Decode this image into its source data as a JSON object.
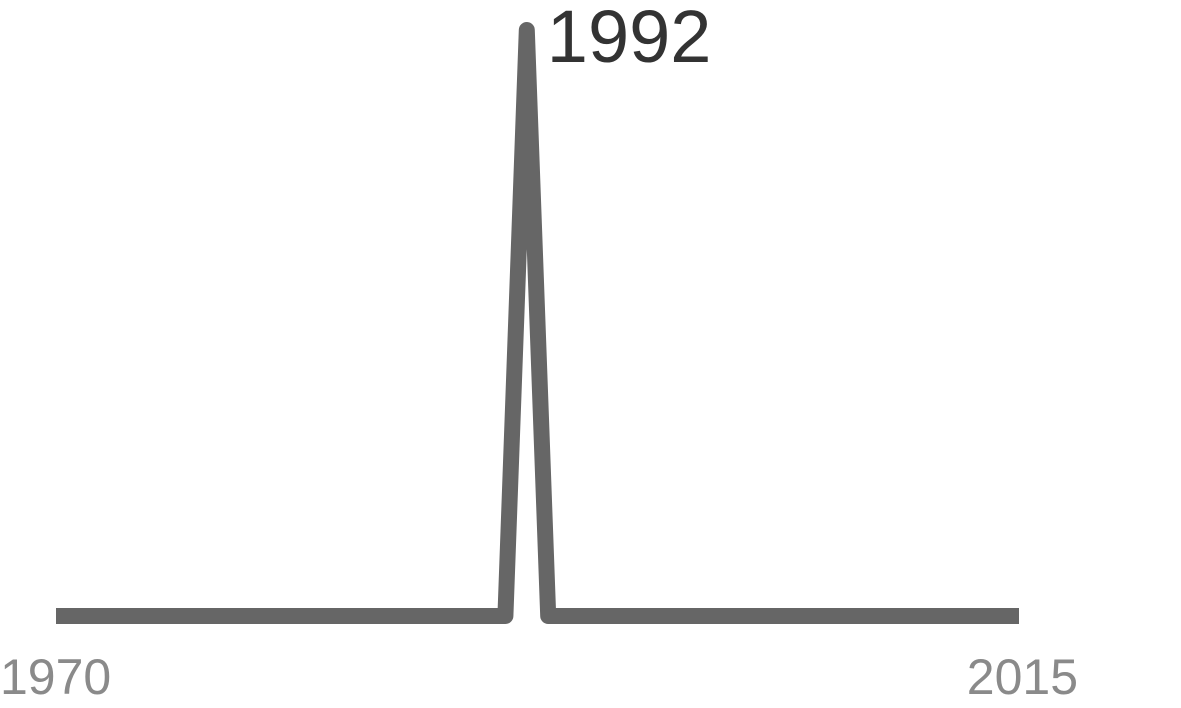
{
  "chart_data": {
    "type": "line",
    "x": [
      1970,
      1990,
      1991,
      1992,
      1993,
      1994,
      2015
    ],
    "values": [
      0,
      0,
      0,
      1,
      0,
      0,
      0
    ],
    "xlim": [
      1970,
      2015
    ],
    "ylim": [
      0,
      1
    ],
    "x_tick_labels": [
      "1970",
      "2015"
    ],
    "annotation": "1992",
    "line_color": "#666666",
    "grid": false,
    "title": "",
    "xlabel": "",
    "ylabel": ""
  }
}
